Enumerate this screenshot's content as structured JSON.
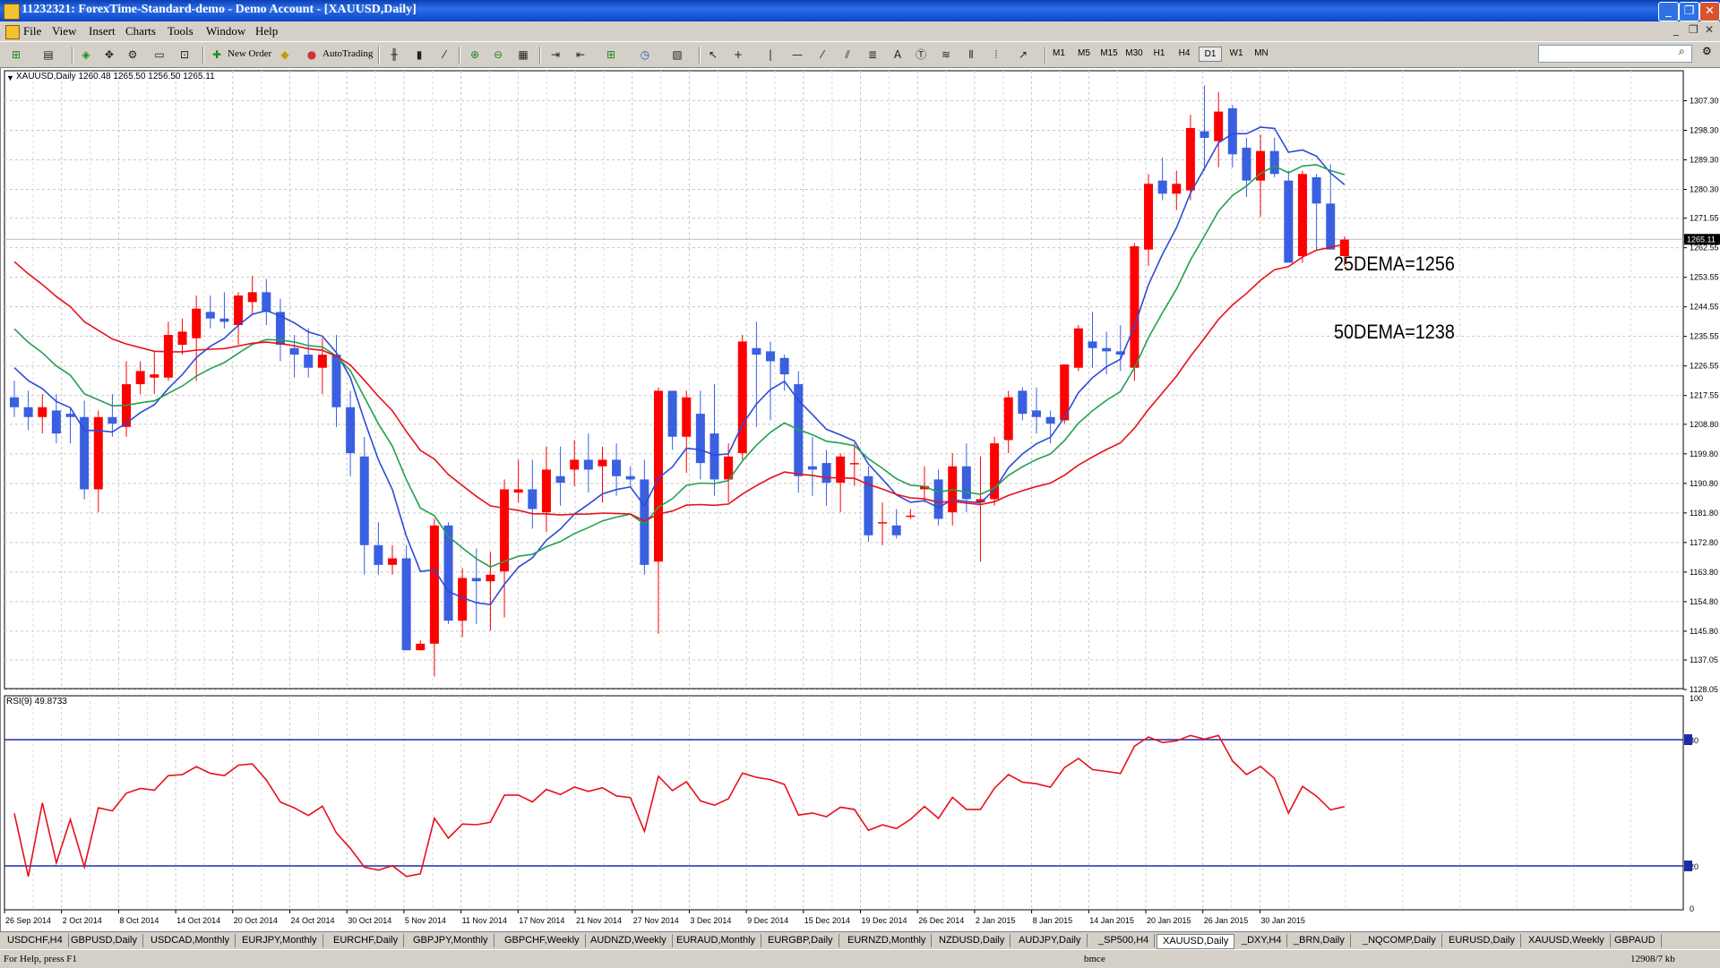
{
  "window": {
    "title": "11232321: ForexTime-Standard-demo - Demo Account - [XAUUSD,Daily]",
    "buttons": [
      "_",
      "❐",
      "✕"
    ]
  },
  "menu": {
    "items": [
      "File",
      "View",
      "Insert",
      "Charts",
      "Tools",
      "Window",
      "Help"
    ]
  },
  "toolbar": {
    "new_order": "New Order",
    "autotrading": "AutoTrading",
    "timeframes": [
      "M1",
      "M5",
      "M15",
      "M30",
      "H1",
      "H4",
      "D1",
      "W1",
      "MN"
    ],
    "active_timeframe": "D1"
  },
  "chart": {
    "header": "XAUUSD,Daily  1260.48 1265.50 1256.50 1265.11",
    "current_price": "1265.11",
    "annotation_25": "25DEMA=1256",
    "annotation_50": "50DEMA=1238",
    "colors": {
      "bull": "#ff0000",
      "bear": "#3a5fe0",
      "dema_short": "#2c4bd8",
      "dema_25": "#22a050",
      "dema_50": "#e8101a",
      "rsi": "#e8101a",
      "rsi_levels": "#1e2aa8"
    }
  },
  "chart_data": {
    "type": "candlestick",
    "price_axis": {
      "min": 1128.05,
      "max": 1307.3,
      "ticks": [
        "1307.30",
        "1298.30",
        "1289.30",
        "1280.30",
        "1271.55",
        "1262.55",
        "1253.55",
        "1244.55",
        "1235.55",
        "1226.55",
        "1217.55",
        "1208.80",
        "1199.80",
        "1190.80",
        "1181.80",
        "1172.80",
        "1163.80",
        "1154.80",
        "1145.80",
        "1137.05",
        "1128.05"
      ]
    },
    "date_labels": [
      "26 Sep 2014",
      "2 Oct 2014",
      "8 Oct 2014",
      "14 Oct 2014",
      "20 Oct 2014",
      "24 Oct 2014",
      "30 Oct 2014",
      "5 Nov 2014",
      "11 Nov 2014",
      "17 Nov 2014",
      "21 Nov 2014",
      "27 Nov 2014",
      "3 Dec 2014",
      "9 Dec 2014",
      "15 Dec 2014",
      "19 Dec 2014",
      "26 Dec 2014",
      "2 Jan 2015",
      "8 Jan 2015",
      "14 Jan 2015",
      "20 Jan 2015",
      "26 Jan 2015",
      "30 Jan 2015"
    ],
    "candles": [
      [
        1217,
        1222,
        1211,
        1214
      ],
      [
        1214,
        1219,
        1207,
        1211
      ],
      [
        1211,
        1218,
        1206,
        1214
      ],
      [
        1213,
        1218,
        1203,
        1206
      ],
      [
        1212,
        1214,
        1203,
        1211
      ],
      [
        1211,
        1216,
        1186,
        1189
      ],
      [
        1189,
        1213,
        1182,
        1211
      ],
      [
        1211,
        1218,
        1205,
        1209
      ],
      [
        1208,
        1228,
        1205,
        1221
      ],
      [
        1221,
        1228,
        1218,
        1225
      ],
      [
        1223,
        1231,
        1218,
        1224
      ],
      [
        1223,
        1240,
        1222,
        1236
      ],
      [
        1233,
        1241,
        1230,
        1237
      ],
      [
        1235,
        1248,
        1222,
        1244
      ],
      [
        1243,
        1248,
        1238,
        1241
      ],
      [
        1241,
        1249,
        1238,
        1240
      ],
      [
        1239,
        1249,
        1233,
        1248
      ],
      [
        1246,
        1254,
        1242,
        1249
      ],
      [
        1249,
        1253,
        1239,
        1243
      ],
      [
        1243,
        1247,
        1228,
        1233
      ],
      [
        1232,
        1236,
        1223,
        1230
      ],
      [
        1230,
        1238,
        1223,
        1226
      ],
      [
        1226,
        1235,
        1218,
        1230
      ],
      [
        1230,
        1236,
        1208,
        1214
      ],
      [
        1214,
        1219,
        1193,
        1200
      ],
      [
        1199,
        1205,
        1163,
        1172
      ],
      [
        1172,
        1179,
        1163,
        1166
      ],
      [
        1166,
        1172,
        1163,
        1168
      ],
      [
        1168,
        1172,
        1140,
        1140
      ],
      [
        1140,
        1143,
        1140,
        1142
      ],
      [
        1142,
        1180,
        1132,
        1178
      ],
      [
        1178,
        1179,
        1148,
        1149
      ],
      [
        1149,
        1165,
        1144,
        1162
      ],
      [
        1162,
        1171,
        1148,
        1161
      ],
      [
        1161,
        1170,
        1146,
        1163
      ],
      [
        1164,
        1192,
        1150,
        1189
      ],
      [
        1188,
        1198,
        1185,
        1189
      ],
      [
        1189,
        1198,
        1177,
        1183
      ],
      [
        1182,
        1202,
        1176,
        1195
      ],
      [
        1193,
        1202,
        1184,
        1191
      ],
      [
        1195,
        1204,
        1190,
        1198
      ],
      [
        1198,
        1206,
        1188,
        1195
      ],
      [
        1196,
        1202,
        1185,
        1198
      ],
      [
        1198,
        1203,
        1187,
        1193
      ],
      [
        1193,
        1196,
        1190,
        1192
      ],
      [
        1192,
        1198,
        1163,
        1166
      ],
      [
        1167,
        1220,
        1145,
        1219
      ],
      [
        1219,
        1219,
        1201,
        1205
      ],
      [
        1205,
        1219,
        1194,
        1217
      ],
      [
        1212,
        1219,
        1192,
        1197
      ],
      [
        1206,
        1221,
        1187,
        1192
      ],
      [
        1192,
        1203,
        1185,
        1199
      ],
      [
        1200,
        1236,
        1198,
        1234
      ],
      [
        1232,
        1240,
        1208,
        1230
      ],
      [
        1231,
        1234,
        1210,
        1228
      ],
      [
        1229,
        1230,
        1219,
        1224
      ],
      [
        1221,
        1225,
        1188,
        1193
      ],
      [
        1196,
        1205,
        1187,
        1195
      ],
      [
        1197,
        1201,
        1184,
        1191
      ],
      [
        1191,
        1200,
        1182,
        1199
      ],
      [
        1197,
        1203,
        1190,
        1197
      ],
      [
        1193,
        1196,
        1173,
        1175
      ],
      [
        1179,
        1185,
        1172,
        1179
      ],
      [
        1178,
        1183,
        1174,
        1175
      ],
      [
        1181,
        1183,
        1180,
        1181
      ],
      [
        1189,
        1196,
        1185,
        1190
      ],
      [
        1192,
        1195,
        1178,
        1180
      ],
      [
        1182,
        1200,
        1178,
        1196
      ],
      [
        1196,
        1203,
        1182,
        1186
      ],
      [
        1185,
        1199,
        1167,
        1186
      ],
      [
        1186,
        1205,
        1184,
        1203
      ],
      [
        1204,
        1219,
        1200,
        1217
      ],
      [
        1219,
        1220,
        1210,
        1212
      ],
      [
        1213,
        1220,
        1206,
        1211
      ],
      [
        1211,
        1213,
        1203,
        1209
      ],
      [
        1210,
        1226,
        1209,
        1227
      ],
      [
        1226,
        1239,
        1225,
        1238
      ],
      [
        1234,
        1243,
        1226,
        1232
      ],
      [
        1232,
        1237,
        1224,
        1231
      ],
      [
        1231,
        1239,
        1225,
        1230
      ],
      [
        1226,
        1264,
        1222,
        1263
      ],
      [
        1262,
        1285,
        1257,
        1282
      ],
      [
        1283,
        1290,
        1277,
        1279
      ],
      [
        1279,
        1286,
        1274,
        1282
      ],
      [
        1280,
        1303,
        1277,
        1299
      ],
      [
        1298,
        1312,
        1286,
        1296
      ],
      [
        1295,
        1310,
        1287,
        1304
      ],
      [
        1305,
        1306,
        1287,
        1291
      ],
      [
        1293,
        1296,
        1278,
        1283
      ],
      [
        1283,
        1297,
        1272,
        1292
      ],
      [
        1292,
        1296,
        1284,
        1285
      ],
      [
        1283,
        1286,
        1259,
        1258
      ],
      [
        1260,
        1286,
        1258,
        1285
      ],
      [
        1284,
        1285,
        1262,
        1276
      ],
      [
        1276,
        1288,
        1262,
        1262
      ],
      [
        1260,
        1266,
        1257,
        1265
      ]
    ],
    "rsi": {
      "label": "RSI(9) 49.8733",
      "levels": [
        80,
        20
      ],
      "axis_labels": [
        "100",
        "80",
        "20",
        "0"
      ]
    }
  },
  "tabs": [
    "USDCHF,H4",
    "GBPUSD,Daily",
    "USDCAD,Monthly",
    "EURJPY,Monthly",
    "EURCHF,Daily",
    "GBPJPY,Monthly",
    "GBPCHF,Weekly",
    "AUDNZD,Weekly",
    "EURAUD,Monthly",
    "EURGBP,Daily",
    "EURNZD,Monthly",
    "NZDUSD,Daily",
    "AUDJPY,Daily",
    "_SP500,H4",
    "XAUUSD,Daily",
    "_DXY,H4",
    "_BRN,Daily",
    "_NQCOMP,Daily",
    "EURUSD,Daily",
    "XAUUSD,Weekly",
    "GBPAUD"
  ],
  "active_tab": "XAUUSD,Daily",
  "status": {
    "help": "For Help, press F1",
    "profile": "bmce",
    "traffic": "12908/7 kb"
  }
}
